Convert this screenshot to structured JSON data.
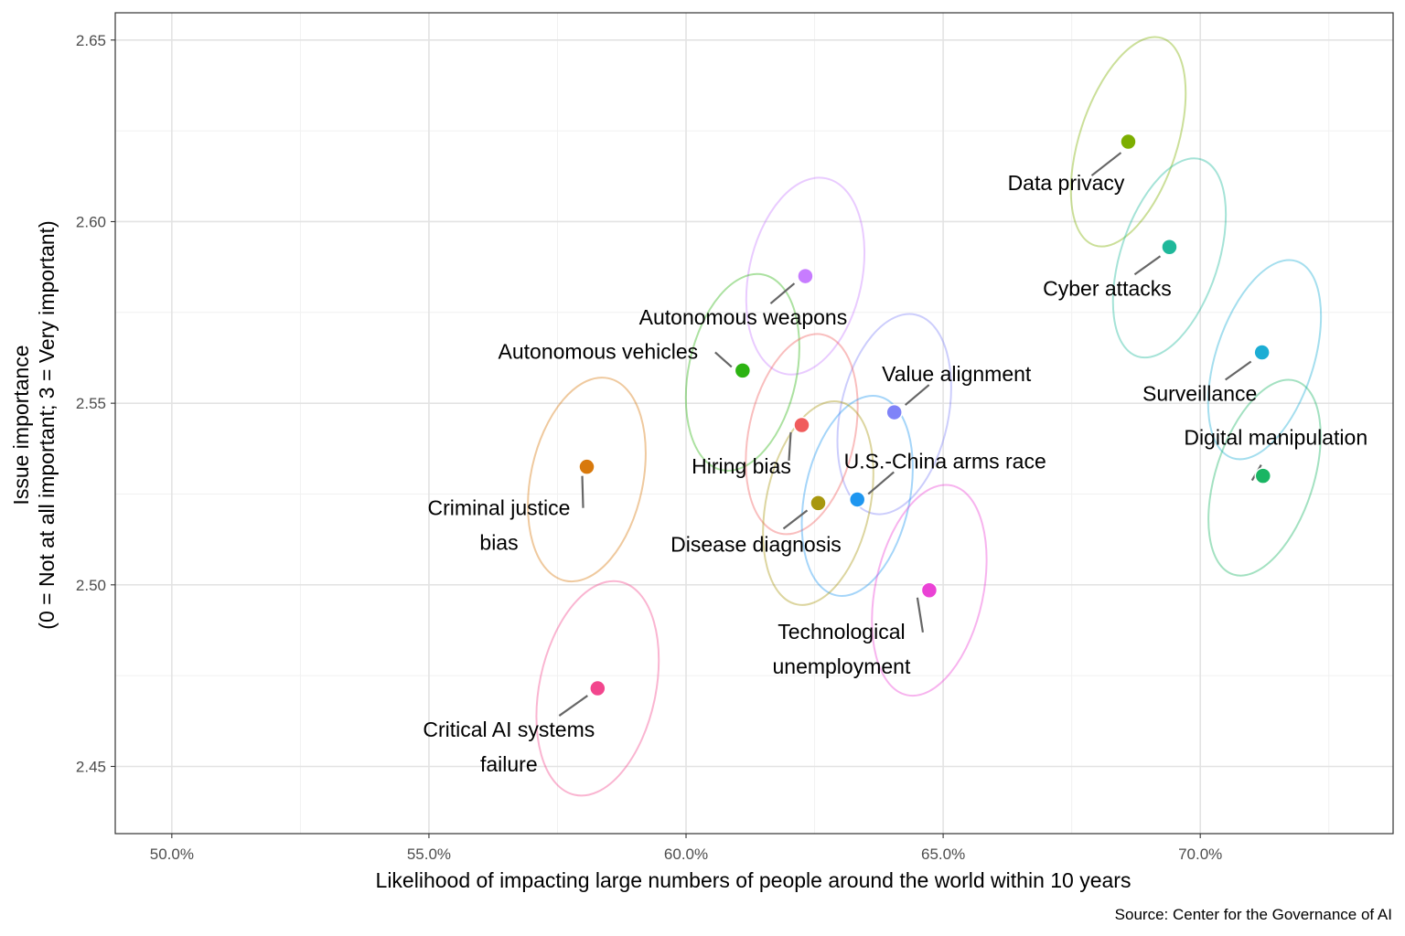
{
  "chart_data": {
    "type": "scatter",
    "title": "",
    "xlabel": "Likelihood of impacting large numbers of people around the world within 10 years",
    "ylabel_lines": [
      "Issue importance",
      "(0 = Not at all important; 3 = Very important)"
    ],
    "caption": "Source: Center for the Governance of AI",
    "xlim": [
      0.489,
      0.7375
    ],
    "ylim": [
      2.4315,
      2.6575
    ],
    "x_ticks": [
      0.5,
      0.55,
      0.6,
      0.65,
      0.7
    ],
    "x_tick_labels": [
      "50.0%",
      "55.0%",
      "60.0%",
      "65.0%",
      "70.0%"
    ],
    "y_ticks": [
      2.45,
      2.5,
      2.55,
      2.6,
      2.65
    ],
    "y_tick_labels": [
      "2.45",
      "2.50",
      "2.55",
      "2.60",
      "2.65"
    ],
    "grid": true,
    "ellipse_note": "confidence ellipses around each point",
    "points": [
      {
        "name": "Data privacy",
        "label_lines": [
          "Data privacy"
        ],
        "x": 0.686,
        "y": 2.622,
        "color": "#7CAE00",
        "ellipse": {
          "cx": 0.686,
          "cy": 2.622,
          "rx": 0.0095,
          "ry": 0.03,
          "rot": 18
        }
      },
      {
        "name": "Cyber attacks",
        "label_lines": [
          "Cyber attacks"
        ],
        "x": 0.694,
        "y": 2.593,
        "color": "#1FB89A",
        "ellipse": {
          "cx": 0.694,
          "cy": 2.59,
          "rx": 0.0095,
          "ry": 0.0285,
          "rot": 18
        }
      },
      {
        "name": "Surveillance",
        "label_lines": [
          "Surveillance"
        ],
        "x": 0.712,
        "y": 2.564,
        "color": "#1CADD4",
        "ellipse": {
          "cx": 0.7125,
          "cy": 2.562,
          "rx": 0.0095,
          "ry": 0.0285,
          "rot": 18
        }
      },
      {
        "name": "Digital manipulation",
        "label_lines": [
          "Digital manipulation"
        ],
        "x": 0.7122,
        "y": 2.53,
        "color": "#1AB563",
        "ellipse": {
          "cx": 0.7125,
          "cy": 2.5295,
          "rx": 0.0095,
          "ry": 0.028,
          "rot": 18
        }
      },
      {
        "name": "Autonomous weapons",
        "label_lines": [
          "Autonomous weapons"
        ],
        "x": 0.6232,
        "y": 2.585,
        "color": "#C77CFF",
        "ellipse": {
          "cx": 0.6232,
          "cy": 2.585,
          "rx": 0.011,
          "ry": 0.0275,
          "rot": 12
        }
      },
      {
        "name": "Autonomous vehicles",
        "label_lines": [
          "Autonomous vehicles"
        ],
        "x": 0.611,
        "y": 2.559,
        "color": "#2CB312",
        "ellipse": {
          "cx": 0.611,
          "cy": 2.5585,
          "rx": 0.0105,
          "ry": 0.0275,
          "rot": 12
        }
      },
      {
        "name": "Value alignment",
        "label_lines": [
          "Value alignment"
        ],
        "x": 0.6405,
        "y": 2.5475,
        "color": "#7F83F8",
        "ellipse": {
          "cx": 0.6405,
          "cy": 2.547,
          "rx": 0.0105,
          "ry": 0.028,
          "rot": 12
        }
      },
      {
        "name": "Hiring bias",
        "label_lines": [
          "Hiring bias"
        ],
        "x": 0.6225,
        "y": 2.544,
        "color": "#F05C5C",
        "ellipse": {
          "cx": 0.6225,
          "cy": 2.5415,
          "rx": 0.0103,
          "ry": 0.028,
          "rot": 12
        }
      },
      {
        "name": "U.S.-China arms race",
        "label_lines": [
          "U.S.-China arms race"
        ],
        "x": 0.6333,
        "y": 2.5235,
        "color": "#1E96F0",
        "ellipse": {
          "cx": 0.6333,
          "cy": 2.5245,
          "rx": 0.0102,
          "ry": 0.028,
          "rot": 12
        }
      },
      {
        "name": "Disease diagnosis",
        "label_lines": [
          "Disease diagnosis"
        ],
        "x": 0.6257,
        "y": 2.5225,
        "color": "#A8970E",
        "ellipse": {
          "cx": 0.6257,
          "cy": 2.5225,
          "rx": 0.0101,
          "ry": 0.0285,
          "rot": 12
        }
      },
      {
        "name": "Criminal justice bias",
        "label_lines": [
          "Criminal justice",
          "bias"
        ],
        "x": 0.5807,
        "y": 2.5325,
        "color": "#D8790C",
        "ellipse": {
          "cx": 0.5807,
          "cy": 2.529,
          "rx": 0.0109,
          "ry": 0.0285,
          "rot": 12
        }
      },
      {
        "name": "Technological unemployment",
        "label_lines": [
          "Technological",
          "unemployment"
        ],
        "x": 0.6473,
        "y": 2.4985,
        "color": "#EA42D5",
        "ellipse": {
          "cx": 0.6473,
          "cy": 2.4985,
          "rx": 0.0105,
          "ry": 0.0295,
          "rot": 12
        }
      },
      {
        "name": "Critical AI systems failure",
        "label_lines": [
          "Critical AI systems",
          "failure"
        ],
        "x": 0.5828,
        "y": 2.4715,
        "color": "#F2468D",
        "ellipse": {
          "cx": 0.5828,
          "cy": 2.4715,
          "rx": 0.0113,
          "ry": 0.03,
          "rot": 12
        }
      }
    ]
  }
}
